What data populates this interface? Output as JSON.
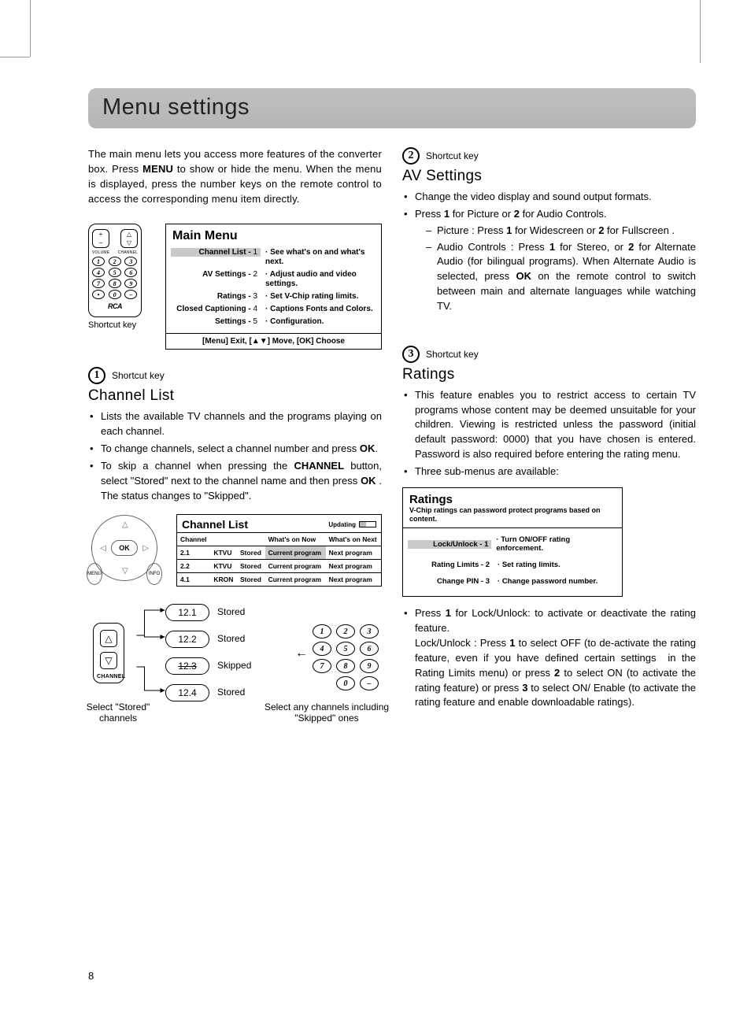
{
  "page_number": "8",
  "title": "Menu settings",
  "intro_html": "The main menu lets you access more features of the converter box. Press <b>MENU</b> to show or hide the menu. When the menu is displayed, press the number keys on the remote control to access the corresponding menu item directly.",
  "shortcut_label": "Shortcut key",
  "mainmenu": {
    "remote": {
      "brand": "RCA",
      "labels": {
        "vol": "VOLUME",
        "chan": "CHANNEL"
      },
      "keys": [
        "1",
        "2",
        "3",
        "4",
        "5",
        "6",
        "7",
        "8",
        "9",
        "•",
        "0",
        "–"
      ]
    },
    "box": {
      "title": "Main Menu",
      "rows": [
        {
          "label": "Channel List",
          "num": "1",
          "desc": "See what's on and what's next.",
          "hl": true
        },
        {
          "label": "AV Settings",
          "num": "2",
          "desc": "Adjust audio and video settings.",
          "hl": false
        },
        {
          "label": "Ratings",
          "num": "3",
          "desc": "Set V-Chip rating limits.",
          "hl": false
        },
        {
          "label": "Closed Captioning",
          "num": "4",
          "desc": "Captions Fonts and Colors.",
          "hl": false
        },
        {
          "label": "Settings",
          "num": "5",
          "desc": "Configuration.",
          "hl": false
        }
      ],
      "footer": "[Menu] Exit, [▲▼] Move, [OK] Choose"
    },
    "caption": "Shortcut key"
  },
  "channel_list": {
    "num": "1",
    "heading": "Channel List",
    "bullets": [
      "Lists the available TV channels and the programs playing on each channel.",
      "To change channels, select a channel number and press <b>OK</b>.",
      "To skip a channel when pressing the <b>CHANNEL</b> button, select \"Stored\" next to the channel name and then press <b>OK</b> . The status changes to \"Skipped\"."
    ],
    "nav_remote": {
      "ok": "OK",
      "menu": "MENU",
      "info": "INFO"
    },
    "box": {
      "title": "Channel List",
      "updating": "Updating",
      "columns": [
        "Channel",
        "",
        "",
        "What's on Now",
        "What's on Next"
      ],
      "rows": [
        [
          "2.1",
          "KTVU",
          "Stored",
          "Current program",
          "Next program",
          true
        ],
        [
          "2.2",
          "KTVU",
          "Stored",
          "Current program",
          "Next program",
          false
        ],
        [
          "4.1",
          "KRON",
          "Stored",
          "Current program",
          "Next program",
          false
        ]
      ]
    },
    "skip": {
      "channels": [
        {
          "label": "12.1",
          "status": "Stored",
          "skipped": false
        },
        {
          "label": "12.2",
          "status": "Stored",
          "skipped": false
        },
        {
          "label": "12.3",
          "status": "Skipped",
          "skipped": true
        },
        {
          "label": "12.4",
          "status": "Stored",
          "skipped": false
        }
      ],
      "chan_label": "CHANNEL",
      "left_caption": "Select \"Stored\" channels",
      "right_caption": "Select any channels including \"Skipped\" ones",
      "keypad": [
        "1",
        "2",
        "3",
        "4",
        "5",
        "6",
        "7",
        "8",
        "9",
        "",
        "0",
        "–"
      ]
    }
  },
  "av_settings": {
    "num": "2",
    "heading": "AV Settings",
    "bullets": [
      "Change the video display and sound output formats.",
      "Press <b>1</b> for Picture or <b>2</b> for Audio Controls."
    ],
    "subbullets": [
      "Picture : Press <b>1</b> for Widescreen or <b>2</b> for Fullscreen .",
      "Audio Controls : Press <b>1</b> for Stereo, or <b>2</b> for Alternate Audio (for bilingual programs). When Alternate Audio is selected, press <b>OK</b> on the remote control to switch between main and alternate languages while watching TV."
    ]
  },
  "ratings": {
    "num": "3",
    "heading": "Ratings",
    "bullets_top": [
      "This feature enables you to restrict access to certain TV programs whose content may be deemed unsuitable for your children. Viewing is restricted unless the password (initial default password: 0000) that you have chosen is entered. Password is also required before entering the rating menu.",
      "Three sub-menus are available:"
    ],
    "box": {
      "title": "Ratings",
      "subtitle": "V-Chip ratings can password protect programs based on content.",
      "rows": [
        {
          "label": "Lock/Unlock",
          "num": "1",
          "desc": "Turn ON/OFF rating enforcement.",
          "hl": true
        },
        {
          "label": "Rating Limits",
          "num": "2",
          "desc": "Set rating limits.",
          "hl": false
        },
        {
          "label": "Change PIN",
          "num": "3",
          "desc": "Change password number.",
          "hl": false
        }
      ]
    },
    "bullets_bottom": [
      "Press <b>1</b> for Lock/Unlock: to activate or deactivate the rating feature.<br>Lock/Unlock : Press <b>1</b> to select OFF (to de-activate the rating feature, even if you have defined certain settings &nbsp;in the Rating Limits menu) or press <b>2</b> to select ON (to activate the rating feature) or press <b>3</b> to select ON/ Enable (to activate the rating feature and enable downloadable ratings)."
    ]
  }
}
